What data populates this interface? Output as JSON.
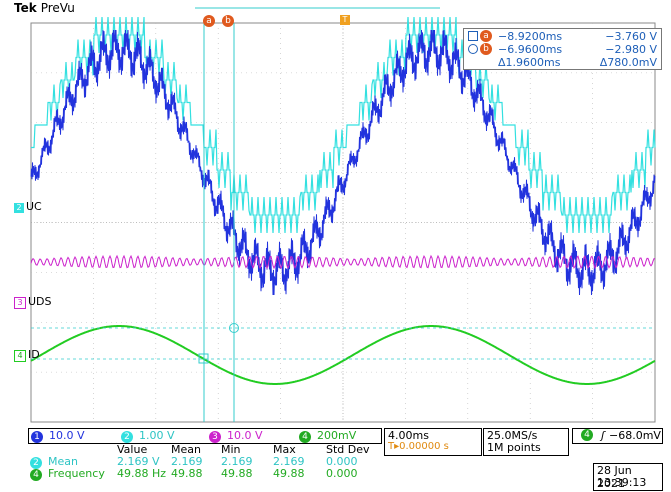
{
  "header": {
    "brand": "Tek",
    "mode": "PreVu"
  },
  "cursors": {
    "a_label": "a",
    "b_label": "b",
    "a_time": "−8.9200ms",
    "a_volt": "−3.760 V",
    "b_time": "−6.9600ms",
    "b_volt": "−2.980 V",
    "delta_time": "Δ1.9600ms",
    "delta_volt": "Δ780.0mV"
  },
  "trigger_marker": "T",
  "channels": [
    {
      "num": "1",
      "scale": "10.0 V",
      "color": "#2233dd",
      "name": ""
    },
    {
      "num": "2",
      "scale": "1.00 V",
      "color": "#33e0e0",
      "name": "UC"
    },
    {
      "num": "3",
      "scale": "10.0 V",
      "color": "#cc22cc",
      "name": "UDS"
    },
    {
      "num": "4",
      "scale": "200mV",
      "color": "#22cc22",
      "name": "ID"
    }
  ],
  "timebase": {
    "scale": "4.00ms",
    "position": "T▸0.00000 s"
  },
  "acquisition": {
    "rate": "25.0MS/s",
    "points": "1M points"
  },
  "trigger": {
    "channel": "4",
    "slope": "ʃ",
    "level": "−68.0mV"
  },
  "measurements": {
    "headers": [
      "Value",
      "Mean",
      "Min",
      "Max",
      "Std Dev"
    ],
    "rows": [
      {
        "channel": "2",
        "name": "Mean",
        "value": "2.169 V",
        "mean": "2.169",
        "min": "2.169",
        "max": "2.169",
        "std": "0.000"
      },
      {
        "channel": "4",
        "name": "Frequency",
        "value": "49.88 Hz",
        "mean": "49.88",
        "min": "49.88",
        "max": "49.88",
        "std": "0.000"
      }
    ]
  },
  "datetime": {
    "date": "28 Jun 2021",
    "time": "13:39:13"
  }
}
